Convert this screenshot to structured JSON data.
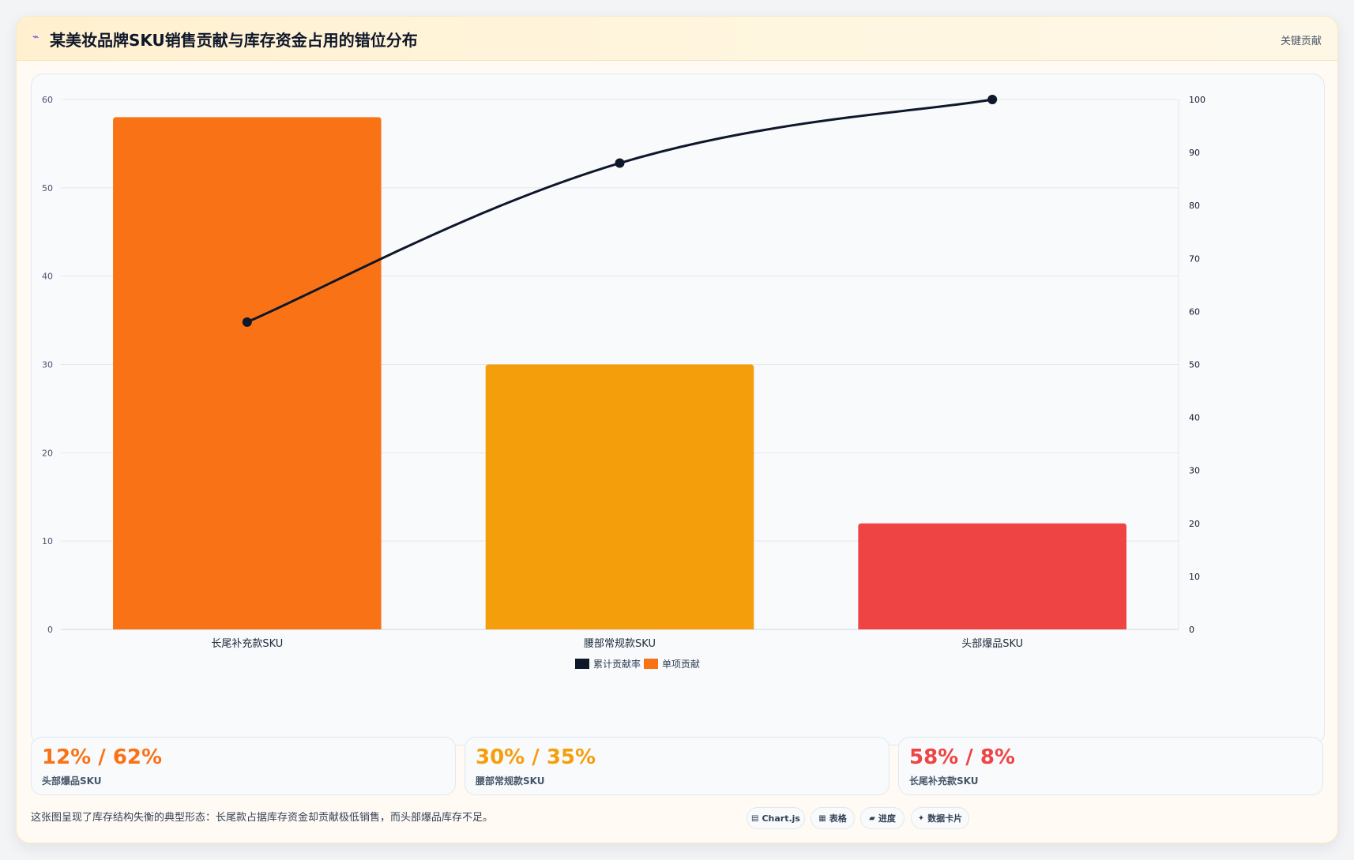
{
  "header": {
    "icon": "chart-icon",
    "title": "某美妆品牌SKU销售贡献与库存资金占用的错位分布",
    "link": "关键贡献"
  },
  "chart_data": {
    "type": "bar",
    "categories": [
      "长尾补充款SKU",
      "腰部常规款SKU",
      "头部爆品SKU"
    ],
    "series": [
      {
        "name": "单项贡献",
        "type": "bar",
        "axis": "left",
        "values": [
          58,
          30,
          12
        ],
        "colors": [
          "#f97316",
          "#f59e0b",
          "#ef4444"
        ]
      },
      {
        "name": "累计贡献率",
        "type": "line",
        "axis": "right",
        "values": [
          58,
          88,
          100
        ],
        "color": "#0f172a"
      }
    ],
    "y_left": {
      "min": 0,
      "max": 60,
      "ticks": [
        0,
        10,
        20,
        30,
        40,
        50,
        60
      ]
    },
    "y_right": {
      "min": 0,
      "max": 100,
      "ticks": [
        0,
        10,
        20,
        30,
        40,
        50,
        60,
        70,
        80,
        90,
        100
      ]
    },
    "legend": [
      {
        "label": "累计贡献率",
        "color": "#0f172a"
      },
      {
        "label": "单项贡献",
        "color": "#f97316"
      }
    ],
    "legend_position": "bottom",
    "grid": true
  },
  "stats": [
    {
      "value": "12% / 62%",
      "label": "头部爆品SKU",
      "color": "#f97316"
    },
    {
      "value": "30% / 35%",
      "label": "腰部常规款SKU",
      "color": "#f59e0b"
    },
    {
      "value": "58% / 8%",
      "label": "长尾补充款SKU",
      "color": "#ef4444"
    }
  ],
  "footer": {
    "note": "这张图呈现了库存结构失衡的典型形态：长尾款占据库存资金却贡献极低销售，而头部爆品库存不足。",
    "tabs": [
      {
        "label": "Chart.js",
        "icon": "bar-chart-icon"
      },
      {
        "label": "表格",
        "icon": "table-icon"
      },
      {
        "label": "进度",
        "icon": "progress-icon"
      },
      {
        "label": "数据卡片",
        "icon": "card-icon"
      }
    ]
  }
}
